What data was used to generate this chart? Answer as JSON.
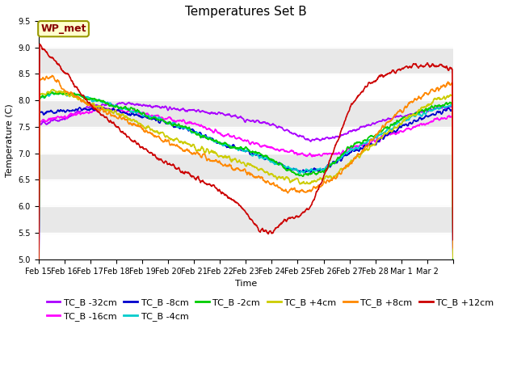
{
  "title": "Temperatures Set B",
  "xlabel": "Time",
  "ylabel": "Temperature (C)",
  "ylim": [
    5.0,
    9.5
  ],
  "yticks": [
    5.0,
    5.5,
    6.0,
    6.5,
    7.0,
    7.5,
    8.0,
    8.5,
    9.0,
    9.5
  ],
  "date_labels": [
    "Feb 15",
    "Feb 16",
    "Feb 17",
    "Feb 18",
    "Feb 19",
    "Feb 20",
    "Feb 21",
    "Feb 22",
    "Feb 23",
    "Feb 24",
    "Feb 25",
    "Feb 26",
    "Feb 27",
    "Feb 28",
    "Mar 1",
    "Mar 2"
  ],
  "series": [
    {
      "label": "TC_B -32cm",
      "color": "#aa00ff"
    },
    {
      "label": "TC_B -16cm",
      "color": "#ff00ff"
    },
    {
      "label": "TC_B -8cm",
      "color": "#0000cc"
    },
    {
      "label": "TC_B -4cm",
      "color": "#00cccc"
    },
    {
      "label": "TC_B -2cm",
      "color": "#00cc00"
    },
    {
      "label": "TC_B +4cm",
      "color": "#cccc00"
    },
    {
      "label": "TC_B +8cm",
      "color": "#ff8800"
    },
    {
      "label": "TC_B +12cm",
      "color": "#cc0000"
    }
  ],
  "wp_met_label": "WP_met",
  "wp_met_color": "#880000",
  "wp_met_bg": "#ffffcc",
  "wp_met_edge": "#999900",
  "band_color": "#e8e8e8",
  "title_fontsize": 11,
  "axis_fontsize": 8,
  "tick_fontsize": 7,
  "legend_fontsize": 8
}
